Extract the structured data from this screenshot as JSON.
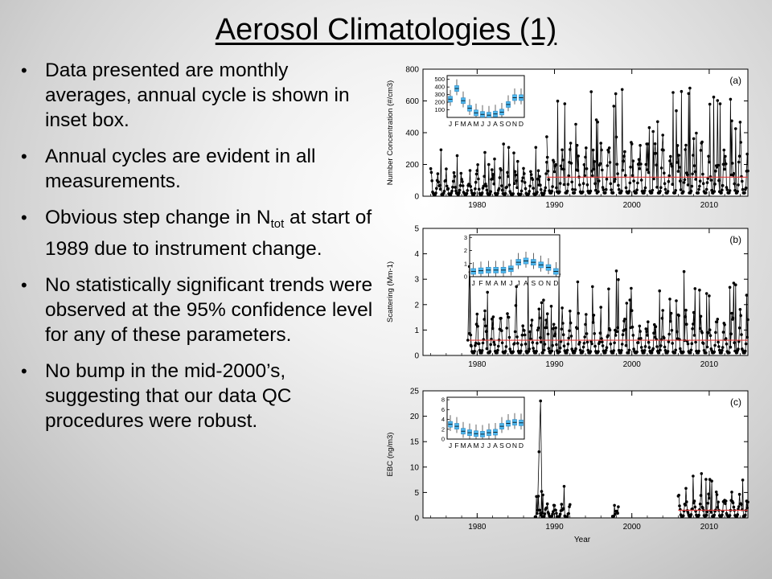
{
  "slide": {
    "title": "Aerosol Climatologies (1)",
    "bullets": [
      {
        "text": "Data presented are monthly averages, annual cycle is shown in inset box."
      },
      {
        "text": "Annual cycles are evident in all measurements."
      },
      {
        "text_before": "Obvious step change in N",
        "subscript": "tot",
        "text_after": " at start of 1989 due to instrument change."
      },
      {
        "text": "No statistically significant trends were observed at the 95% confidence level for any of these parameters."
      },
      {
        "text": "No bump in the mid-2000’s, suggesting that our data QC procedures were robust."
      }
    ]
  },
  "colors": {
    "trend_line": "#e23b3b",
    "inset_box": "#4db6ec",
    "data": "#000000"
  },
  "chart_data": [
    {
      "type": "line",
      "panel_label": "(a)",
      "ylabel": "Number Concentration (#/cm3)",
      "xlabel": "",
      "xlim": [
        1973,
        2015
      ],
      "ylim": [
        0,
        800
      ],
      "x_ticks": [
        1980,
        1990,
        2000,
        2010
      ],
      "y_ticks": [
        0,
        200,
        400,
        600,
        800
      ],
      "trend_line": {
        "from": 1989,
        "to": 2015,
        "value": 120
      },
      "series_profile": [
        {
          "from": 1974,
          "to": 1989,
          "low": 10,
          "high": 160
        },
        {
          "from": 1989,
          "to": 2015,
          "low": 20,
          "high": 330
        }
      ],
      "inset": {
        "months": [
          "J",
          "F",
          "M",
          "A",
          "M",
          "J",
          "J",
          "A",
          "S",
          "O",
          "N",
          "D"
        ],
        "y_ticks": [
          100,
          200,
          300,
          400,
          500
        ],
        "ylim": [
          0,
          550
        ],
        "medians": [
          240,
          380,
          220,
          120,
          60,
          40,
          30,
          45,
          70,
          170,
          260,
          260
        ]
      }
    },
    {
      "type": "line",
      "panel_label": "(b)",
      "ylabel": "Scattering (Mm-1)",
      "xlabel": "",
      "xlim": [
        1973,
        2015
      ],
      "ylim": [
        0,
        5
      ],
      "x_ticks": [
        1980,
        1990,
        2000,
        2010
      ],
      "y_ticks": [
        0,
        1,
        2,
        3,
        4,
        5
      ],
      "trend_line": {
        "from": 1979,
        "to": 2015,
        "value": 0.6
      },
      "series_profile": [
        {
          "from": 1979,
          "to": 2015,
          "low": 0.1,
          "high": 1.6
        }
      ],
      "inset": {
        "months": [
          "J",
          "F",
          "M",
          "A",
          "M",
          "J",
          "J",
          "A",
          "S",
          "O",
          "N",
          "D"
        ],
        "y_ticks": [
          0,
          1,
          2,
          3
        ],
        "ylim": [
          0,
          3.2
        ],
        "medians": [
          0.4,
          0.45,
          0.5,
          0.5,
          0.5,
          0.6,
          1.1,
          1.2,
          1.1,
          0.9,
          0.7,
          0.4
        ]
      }
    },
    {
      "type": "line",
      "panel_label": "(c)",
      "ylabel": "EBC (ng/m3)",
      "xlabel": "Year",
      "xlim": [
        1973,
        2015
      ],
      "ylim": [
        0,
        25
      ],
      "x_ticks": [
        1980,
        1990,
        2000,
        2010
      ],
      "y_ticks": [
        0,
        5,
        10,
        15,
        20,
        25
      ],
      "trend_line": {
        "from": 2006,
        "to": 2015,
        "value": 1.5
      },
      "series_profile": [
        {
          "from": 1987.5,
          "to": 1992,
          "low": 0.2,
          "high": 3.0
        },
        {
          "from": 1997.5,
          "to": 1998.3,
          "low": 0.3,
          "high": 1.8
        },
        {
          "from": 2006,
          "to": 2015,
          "low": 0.3,
          "high": 5.0
        }
      ],
      "inset": {
        "months": [
          "J",
          "F",
          "M",
          "A",
          "M",
          "J",
          "J",
          "A",
          "S",
          "O",
          "N",
          "D"
        ],
        "y_ticks": [
          0,
          2,
          4,
          6,
          8
        ],
        "ylim": [
          0,
          8.5
        ],
        "medians": [
          3.0,
          2.6,
          1.6,
          1.3,
          1.1,
          1.0,
          1.3,
          1.4,
          2.6,
          3.2,
          3.4,
          3.3
        ]
      }
    }
  ]
}
